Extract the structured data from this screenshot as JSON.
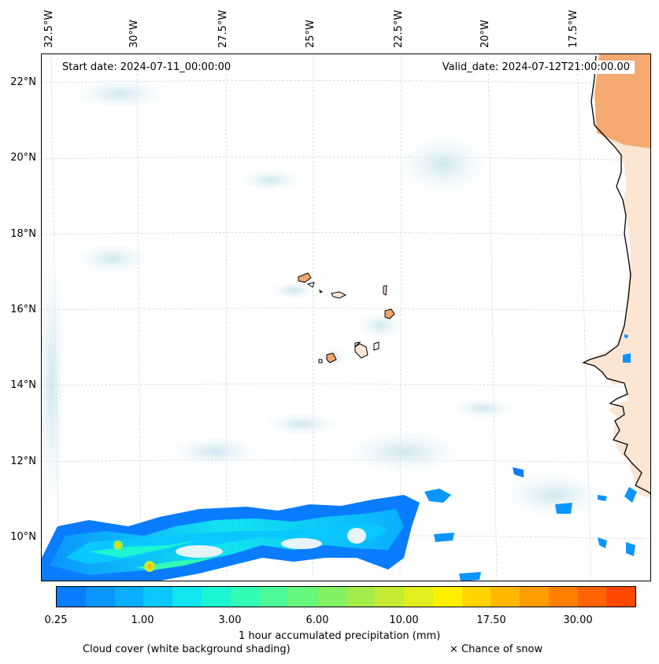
{
  "map": {
    "start_date_label": "Start date: 2024-07-11_00:00:00",
    "valid_date_label": "Valid_date: 2024-07-12T21:00:00.00",
    "longitude_labels": [
      "32.5°W",
      "30°W",
      "27.5°W",
      "25°W",
      "22.5°W",
      "20°W",
      "17.5°W"
    ],
    "latitude_labels": [
      "22°N",
      "20°N",
      "18°N",
      "16°N",
      "14°N",
      "12°N",
      "10°N"
    ]
  },
  "legend": {
    "precip_title": "1 hour accumulated precipitation (mm)",
    "cloud_caption": "Cloud cover (white background shading)",
    "snow_caption": "× Chance of snow",
    "tick_labels": [
      "0.25",
      "1.00",
      "3.00",
      "6.00",
      "10.00",
      "17.50",
      "30.00"
    ],
    "colors": [
      "#0a7cff",
      "#0a95ff",
      "#0aaeff",
      "#0ac8ff",
      "#12e4f0",
      "#1cf5d2",
      "#32fbb4",
      "#4cfb98",
      "#66f87c",
      "#82f262",
      "#a4ec4a",
      "#c4ea34",
      "#e2ee1e",
      "#fff000",
      "#ffd400",
      "#ffb800",
      "#ff9c00",
      "#ff8000",
      "#ff6400",
      "#ff4800"
    ]
  },
  "colors": {
    "land_orange": "#f3a76a",
    "cloud_blue": "#d4eaf0",
    "coast": "#000000"
  }
}
